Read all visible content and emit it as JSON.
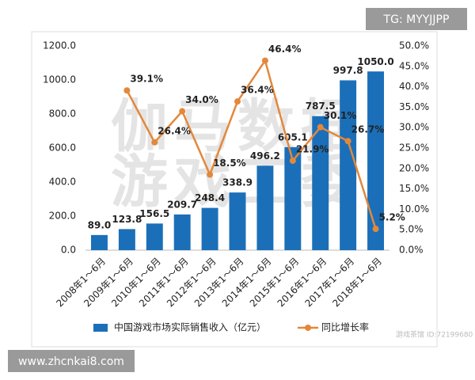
{
  "chart_data": {
    "type": "bar",
    "categories": [
      "2008年1～6月",
      "2009年1～6月",
      "2010年1～6月",
      "2011年1～6月",
      "2012年1～6月",
      "2013年1～6月",
      "2014年1～6月",
      "2015年1～6月",
      "2016年1～6月",
      "2017年1～6月",
      "2018年1～6月"
    ],
    "series": [
      {
        "name": "中国游戏市场实际销售收入（亿元）",
        "type": "bar",
        "axis": "y",
        "color": "#1b6fb8",
        "values": [
          89.0,
          123.8,
          156.5,
          209.7,
          248.4,
          338.9,
          496.2,
          605.1,
          787.5,
          997.8,
          1050.0
        ],
        "value_labels": [
          "89.0",
          "123.8",
          "156.5",
          "209.7",
          "248.4",
          "338.9",
          "496.2",
          "605.1",
          "787.5",
          "997.8",
          "1050.0"
        ]
      },
      {
        "name": "同比增长率",
        "type": "line",
        "axis": "y2",
        "color": "#e3883b",
        "values": [
          null,
          39.1,
          26.4,
          34.0,
          18.5,
          36.4,
          46.4,
          21.9,
          30.1,
          26.7,
          5.2
        ],
        "value_labels": [
          null,
          "39.1%",
          "26.4%",
          "34.0%",
          "18.5%",
          "36.4%",
          "46.4%",
          "21.9%",
          "30.1%",
          "26.7%",
          "5.2%"
        ]
      }
    ],
    "ylim": [
      0,
      1200
    ],
    "yticks": [
      {
        "value": 0,
        "label": "0.0"
      },
      {
        "value": 200,
        "label": "200.0"
      },
      {
        "value": 400,
        "label": "400.0"
      },
      {
        "value": 600,
        "label": "600.0"
      },
      {
        "value": 800,
        "label": "800.0"
      },
      {
        "value": 1000,
        "label": "1000.0"
      },
      {
        "value": 1200,
        "label": "1200.0"
      }
    ],
    "y2lim": [
      0,
      50
    ],
    "y2ticks": [
      {
        "value": 0,
        "label": "0.0%"
      },
      {
        "value": 5,
        "label": "5.0%"
      },
      {
        "value": 10,
        "label": "10.0%"
      },
      {
        "value": 15,
        "label": "15.0%"
      },
      {
        "value": 20,
        "label": "20.0%"
      },
      {
        "value": 25,
        "label": "25.0%"
      },
      {
        "value": 30,
        "label": "30.0%"
      },
      {
        "value": 35,
        "label": "35.0%"
      },
      {
        "value": 40,
        "label": "40.0%"
      },
      {
        "value": 45,
        "label": "45.0%"
      },
      {
        "value": 50,
        "label": "50.0%"
      }
    ],
    "legend": "bottom",
    "watermark": [
      "伽马数据",
      "游戏工委"
    ]
  },
  "overlays": {
    "top_right": "TG: MYYJJPP",
    "bottom_left": "www.zhcnkai8.com",
    "stamp": "游戏茶馆 ID:72199680"
  }
}
